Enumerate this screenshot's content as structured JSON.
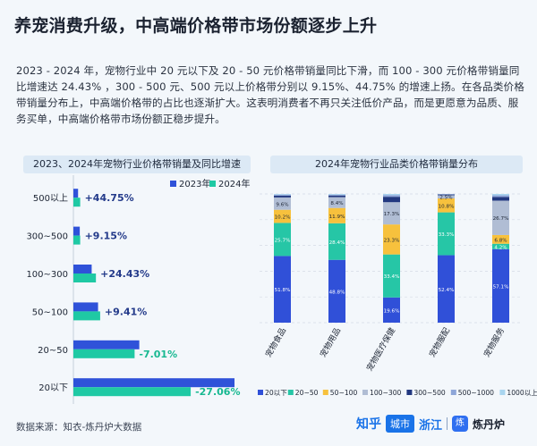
{
  "title": "养宠消费升级，中高端价格带市场份额逐步上升",
  "intro": "2023 - 2024 年，宠物行业中 20 元以下及 20 - 50 元价格带销量同比下滑，而 100 - 300 元价格带销量同比增速达 24.43% ，300 - 500 元、500 元以上价格带分别以 9.15%、44.75% 的增速上扬。在各品类价格带销量分布上，中高端价格带的占比也逐渐扩大。这表明消费者不再只关注低价产品，而是更愿意为品质、服务买单，中高端价格带市场份额正稳步提升。",
  "source": "数据来源：知衣-炼丹炉大数据",
  "watermark": {
    "zhihu": "知乎",
    "city": "城市",
    "zhejiang": "浙江",
    "brand_icon": "炼",
    "brand": "炼丹炉"
  },
  "colors": {
    "y2023": "#2f52d9",
    "y2024": "#1fc9a4",
    "pos": "#233a8a",
    "neg": "#17b891",
    "b1": "#3050d8",
    "b2": "#26c6a6",
    "b3": "#f7c13d",
    "b4": "#b0bdd4",
    "b5": "#223880",
    "b6": "#8ea6d8",
    "b7": "#a9d5ef"
  },
  "chart_data": [
    {
      "type": "bar",
      "orientation": "horizontal",
      "title": "2023、2024年宠物行业价格带销量及同比增速",
      "categories": [
        "500以上",
        "300~500",
        "100~300",
        "50~100",
        "20~50",
        "20以下"
      ],
      "series": [
        {
          "name": "2023年",
          "values": [
            1.1,
            1.5,
            4.3,
            5.8,
            15.5,
            37.9
          ]
        },
        {
          "name": "2024年",
          "values": [
            1.6,
            1.6,
            5.3,
            6.3,
            14.4,
            27.6
          ]
        }
      ],
      "growth_labels": [
        "+44.75%",
        "+9.15%",
        "+24.43%",
        "+9.41%",
        "-7.01%",
        "-27.06%"
      ],
      "legend": "top-right"
    },
    {
      "type": "bar",
      "stacked": true,
      "title": "2024年宠物行业品类价格带销量分布",
      "categories": [
        "宠物食品",
        "宠物用品",
        "宠物医疗保健",
        "宠物服配",
        "宠物服务"
      ],
      "series": [
        {
          "name": "20以下",
          "values": [
            51.8,
            48.8,
            19.6,
            52.4,
            57.1
          ]
        },
        {
          "name": "20~50",
          "values": [
            25.7,
            28.4,
            33.4,
            33.3,
            4.2
          ]
        },
        {
          "name": "50~100",
          "values": [
            10.2,
            11.9,
            23.3,
            10.8,
            6.8
          ]
        },
        {
          "name": "100~300",
          "values": [
            9.6,
            8.4,
            17.3,
            2.5,
            26.7
          ]
        },
        {
          "name": "300~500",
          "values": [
            1.4,
            1.3,
            4.2,
            0.6,
            2.9
          ]
        },
        {
          "name": "500~1000",
          "values": [
            0.8,
            0.7,
            1.4,
            0.3,
            1.3
          ]
        },
        {
          "name": "1000以上",
          "values": [
            0.5,
            0.5,
            0.8,
            0.1,
            1.0
          ]
        }
      ],
      "ylim": [
        0,
        100
      ],
      "legend": "bottom"
    }
  ]
}
